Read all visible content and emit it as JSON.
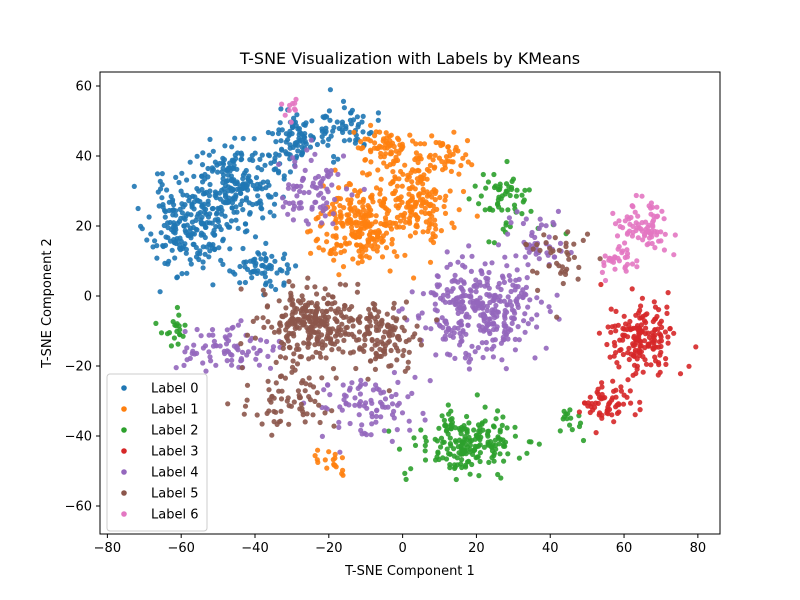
{
  "chart_data": {
    "type": "scatter",
    "title": "T-SNE Visualization with Labels by KMeans",
    "xlabel": "T-SNE Component 1",
    "ylabel": "T-SNE Component 2",
    "xlim": [
      -82,
      86
    ],
    "ylim": [
      -68,
      64
    ],
    "xticks": [
      -80,
      -60,
      -40,
      -20,
      0,
      20,
      40,
      60,
      80
    ],
    "yticks": [
      -60,
      -40,
      -20,
      0,
      20,
      40,
      60
    ],
    "grid": false,
    "legend": "lower-left",
    "series": [
      {
        "name": "Label 0",
        "color": "#1f77b4",
        "clusters": [
          {
            "cx": -58,
            "cy": 20,
            "rx": 10,
            "ry": 12,
            "n": 220,
            "seed": 11
          },
          {
            "cx": -45,
            "cy": 32,
            "rx": 10,
            "ry": 10,
            "n": 200,
            "seed": 12
          },
          {
            "cx": -30,
            "cy": 45,
            "rx": 8,
            "ry": 7,
            "n": 90,
            "seed": 13
          },
          {
            "cx": -15,
            "cy": 48,
            "rx": 7,
            "ry": 6,
            "n": 50,
            "seed": 14
          },
          {
            "cx": -38,
            "cy": 8,
            "rx": 8,
            "ry": 6,
            "n": 60,
            "seed": 15
          }
        ]
      },
      {
        "name": "Label 1",
        "color": "#ff7f0e",
        "clusters": [
          {
            "cx": -12,
            "cy": 20,
            "rx": 11,
            "ry": 11,
            "n": 230,
            "seed": 21
          },
          {
            "cx": 3,
            "cy": 28,
            "rx": 10,
            "ry": 10,
            "n": 170,
            "seed": 22
          },
          {
            "cx": -5,
            "cy": 42,
            "rx": 8,
            "ry": 6,
            "n": 70,
            "seed": 23
          },
          {
            "cx": 12,
            "cy": 40,
            "rx": 7,
            "ry": 6,
            "n": 40,
            "seed": 24
          },
          {
            "cx": -20,
            "cy": -48,
            "rx": 5,
            "ry": 4,
            "n": 18,
            "seed": 25
          }
        ]
      },
      {
        "name": "Label 2",
        "color": "#2ca02c",
        "clusters": [
          {
            "cx": 18,
            "cy": -42,
            "rx": 12,
            "ry": 8,
            "n": 200,
            "seed": 31
          },
          {
            "cx": 28,
            "cy": 28,
            "rx": 8,
            "ry": 8,
            "n": 60,
            "seed": 32
          },
          {
            "cx": -62,
            "cy": -10,
            "rx": 4,
            "ry": 5,
            "n": 20,
            "seed": 33
          },
          {
            "cx": 45,
            "cy": -35,
            "rx": 4,
            "ry": 4,
            "n": 15,
            "seed": 34
          }
        ]
      },
      {
        "name": "Label 3",
        "color": "#d62728",
        "clusters": [
          {
            "cx": 65,
            "cy": -12,
            "rx": 8,
            "ry": 10,
            "n": 170,
            "seed": 41
          },
          {
            "cx": 55,
            "cy": -30,
            "rx": 7,
            "ry": 5,
            "n": 60,
            "seed": 42
          }
        ]
      },
      {
        "name": "Label 4",
        "color": "#9467bd",
        "clusters": [
          {
            "cx": 20,
            "cy": -5,
            "rx": 14,
            "ry": 12,
            "n": 330,
            "seed": 51
          },
          {
            "cx": -45,
            "cy": -15,
            "rx": 12,
            "ry": 6,
            "n": 80,
            "seed": 52
          },
          {
            "cx": -10,
            "cy": -32,
            "rx": 14,
            "ry": 8,
            "n": 90,
            "seed": 53
          },
          {
            "cx": -25,
            "cy": 30,
            "rx": 10,
            "ry": 10,
            "n": 80,
            "seed": 54
          },
          {
            "cx": 35,
            "cy": 15,
            "rx": 8,
            "ry": 8,
            "n": 50,
            "seed": 55
          }
        ]
      },
      {
        "name": "Label 5",
        "color": "#8c564b",
        "clusters": [
          {
            "cx": -25,
            "cy": -8,
            "rx": 13,
            "ry": 9,
            "n": 280,
            "seed": 61
          },
          {
            "cx": -5,
            "cy": -12,
            "rx": 9,
            "ry": 9,
            "n": 120,
            "seed": 62
          },
          {
            "cx": -30,
            "cy": -30,
            "rx": 10,
            "ry": 8,
            "n": 70,
            "seed": 63
          },
          {
            "cx": 42,
            "cy": 10,
            "rx": 8,
            "ry": 8,
            "n": 40,
            "seed": 64
          }
        ]
      },
      {
        "name": "Label 6",
        "color": "#e377c2",
        "clusters": [
          {
            "cx": 65,
            "cy": 20,
            "rx": 7,
            "ry": 7,
            "n": 80,
            "seed": 71
          },
          {
            "cx": 58,
            "cy": 10,
            "rx": 5,
            "ry": 5,
            "n": 30,
            "seed": 72
          },
          {
            "cx": -30,
            "cy": 53,
            "rx": 3,
            "ry": 3,
            "n": 10,
            "seed": 73
          }
        ]
      }
    ]
  }
}
